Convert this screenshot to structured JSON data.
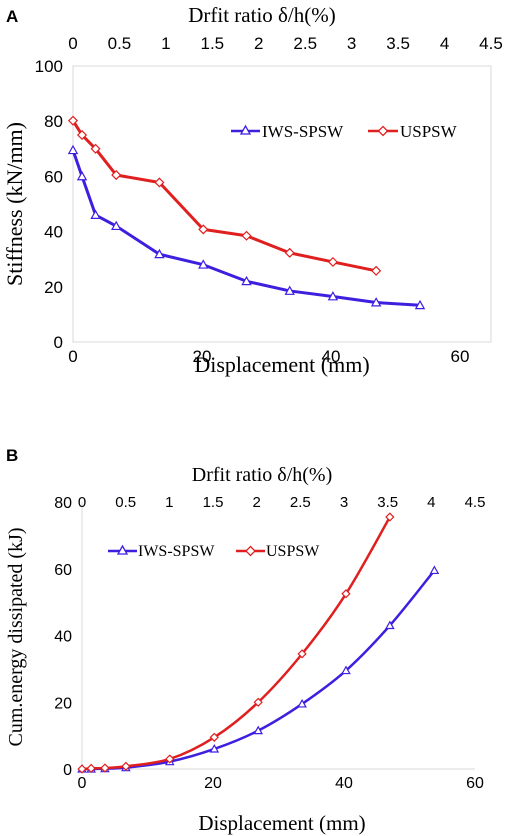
{
  "chart_data": [
    {
      "panel_label": "A",
      "type": "line",
      "title": "",
      "xlabel": "Displacement (mm)",
      "ylabel": "Stiffness (kN/mm)",
      "x2label": "Drfit ratio δ/h(%)",
      "xlim": [
        0,
        60
      ],
      "ylim": [
        0,
        100
      ],
      "x2lim": [
        0,
        4.5
      ],
      "xticks": [
        "0",
        "20",
        "40",
        "60"
      ],
      "yticks": [
        "0",
        "20",
        "40",
        "60",
        "80",
        "100"
      ],
      "x2ticks": [
        "0",
        "0.5",
        "1",
        "1.5",
        "2",
        "2.5",
        "3",
        "3.5",
        "4",
        "4.5"
      ],
      "grid": false,
      "legend_position": "top-right",
      "series": [
        {
          "name": "IWS-SPSW",
          "color": "#3d1fe0",
          "marker": "triangle",
          "x": [
            0,
            1.4,
            3.5,
            6.7,
            13.4,
            20.2,
            26.9,
            33.6,
            40.3,
            47.0,
            53.8
          ],
          "y": [
            69.5,
            60,
            46,
            42,
            31.8,
            28,
            22,
            18.5,
            16.5,
            14.3,
            13.3
          ]
        },
        {
          "name": "USPSW",
          "color": "#e01f1f",
          "marker": "diamond",
          "x": [
            0,
            1.4,
            3.5,
            6.7,
            13.4,
            20.2,
            26.9,
            33.6,
            40.3,
            47.0
          ],
          "y": [
            80.2,
            75,
            70,
            60.5,
            57.8,
            40.8,
            38.5,
            32.3,
            29,
            25.8
          ]
        }
      ]
    },
    {
      "panel_label": "B",
      "type": "line",
      "title": "",
      "xlabel": "Displacement (mm)",
      "ylabel": "Cum.energy dissipated (kJ)",
      "x2label": "Drfit ratio δ/h(%)",
      "xlim": [
        0,
        60
      ],
      "ylim": [
        0,
        80
      ],
      "x2lim": [
        0,
        4.5
      ],
      "xticks": [
        "0",
        "20",
        "40",
        "60"
      ],
      "yticks": [
        "0",
        "20",
        "40",
        "60",
        "80"
      ],
      "x2ticks": [
        "0",
        "0.5",
        "1",
        "1.5",
        "2",
        "2.5",
        "3",
        "3.5",
        "4",
        "4.5"
      ],
      "grid": false,
      "legend_position": "top-left",
      "series": [
        {
          "name": "IWS-SPSW",
          "color": "#3d1fe0",
          "marker": "triangle",
          "x": [
            0,
            1.4,
            3.5,
            6.7,
            13.4,
            20.2,
            26.9,
            33.6,
            40.3,
            47.0,
            53.8
          ],
          "y": [
            0,
            0,
            0.1,
            0.4,
            2.2,
            6,
            11.5,
            19.5,
            29.5,
            43,
            59.5
          ]
        },
        {
          "name": "USPSW",
          "color": "#e01f1f",
          "marker": "diamond",
          "x": [
            0,
            1.4,
            3.5,
            6.7,
            13.4,
            20.2,
            26.9,
            33.6,
            40.3,
            47.0
          ],
          "y": [
            0,
            0.2,
            0.3,
            0.8,
            3,
            9.5,
            20,
            34.5,
            52.5,
            75.5
          ]
        }
      ]
    }
  ]
}
